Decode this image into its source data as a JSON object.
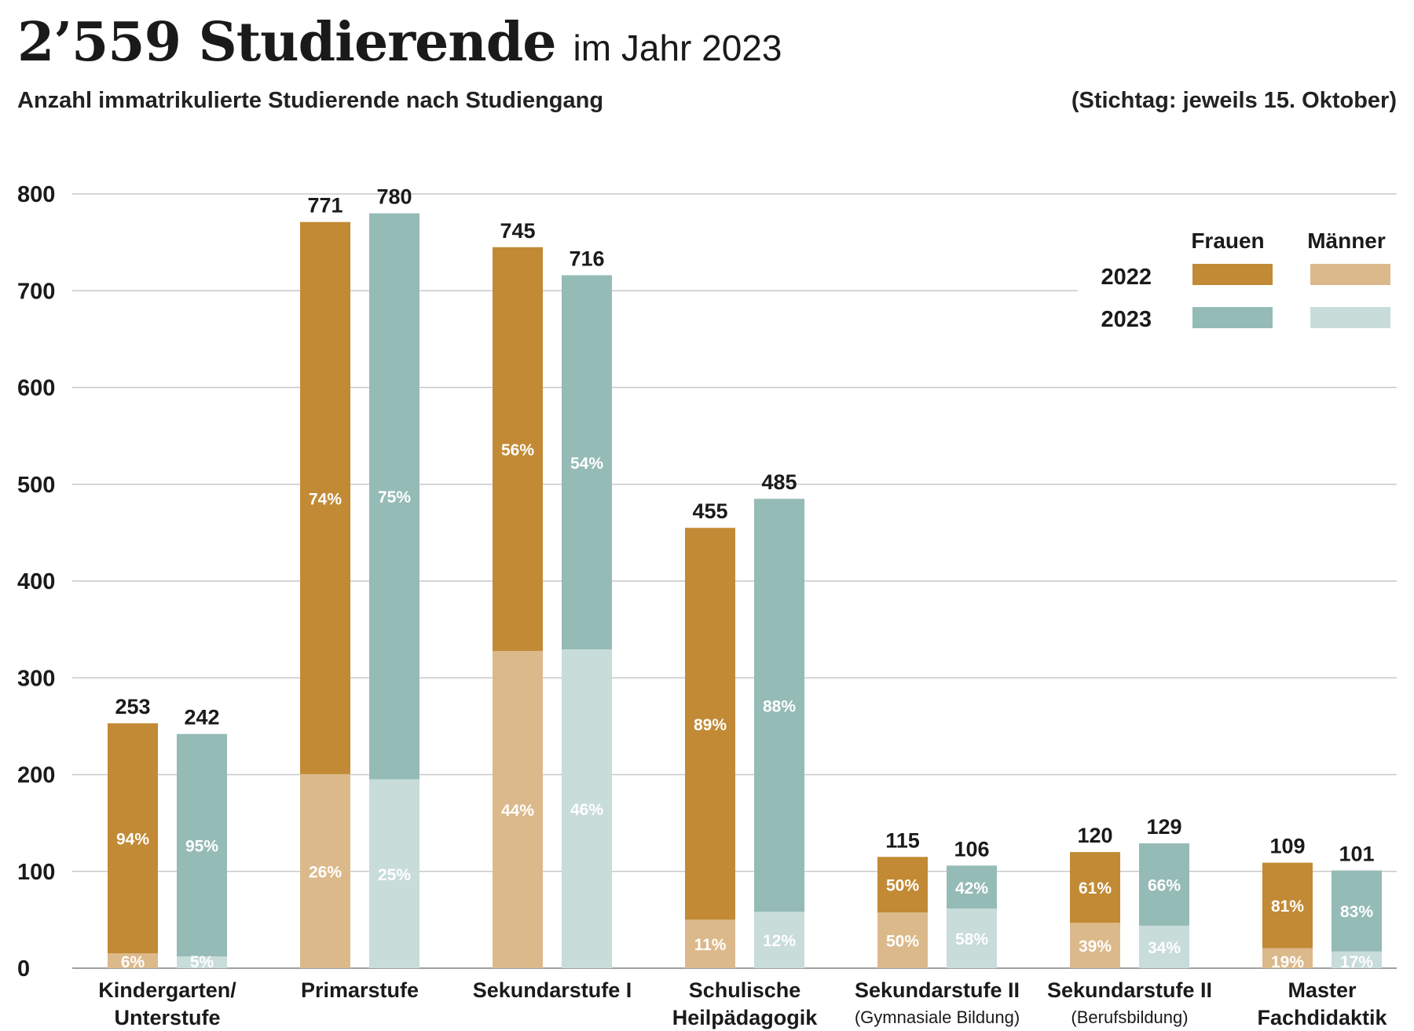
{
  "header": {
    "title_main": "2’559 Studierende",
    "title_sub": "im Jahr 2023",
    "subtitle": "Anzahl immatrikulierte Studierende nach Studiengang",
    "note": "(Stichtag: jeweils 15. Oktober)"
  },
  "legend": {
    "col_frauen": "Frauen",
    "col_maenner": "Männer",
    "row_2022": "2022",
    "row_2023": "2023"
  },
  "colors": {
    "2022_frauen": "#c28a35",
    "2022_maenner": "#dcb98b",
    "2023_frauen": "#95bbb6",
    "2023_maenner": "#c8dcd9",
    "grid": "#c8c8c8",
    "pct_2022_frauen": "#ffffff",
    "pct_other": "#ffffff"
  },
  "chart_data": {
    "type": "bar",
    "stacked": true,
    "ylim": [
      0,
      800
    ],
    "yticks": [
      "0",
      "100",
      "200",
      "300",
      "400",
      "500",
      "600",
      "700",
      "800"
    ],
    "ytick_values": [
      0,
      100,
      200,
      300,
      400,
      500,
      600,
      700,
      800
    ],
    "grid": true,
    "legend_position": "top-right",
    "categories": [
      {
        "label1": "Kindergarten/",
        "label2": "Unterstufe",
        "sub": ""
      },
      {
        "label1": "Primarstufe",
        "label2": "",
        "sub": ""
      },
      {
        "label1": "Sekundarstufe I",
        "label2": "",
        "sub": ""
      },
      {
        "label1": "Schulische",
        "label2": "Heilpädagogik",
        "sub": ""
      },
      {
        "label1": "Sekundarstufe II",
        "label2": "",
        "sub": "(Gymnasiale Bildung)"
      },
      {
        "label1": "Sekundarstufe II",
        "label2": "",
        "sub": "(Berufsbildung)"
      },
      {
        "label1": "Master",
        "label2": "Fachdidaktik",
        "sub": ""
      }
    ],
    "series": [
      {
        "name": "2022",
        "totals": [
          253,
          771,
          745,
          455,
          115,
          120,
          109
        ],
        "total_labels": [
          "253",
          "771",
          "745",
          "455",
          "115",
          "120",
          "109"
        ],
        "frauen_pct": [
          94,
          74,
          56,
          89,
          50,
          61,
          81
        ],
        "maenner_pct": [
          6,
          26,
          44,
          11,
          50,
          39,
          19
        ],
        "frauen_labels": [
          "94%",
          "74%",
          "56%",
          "89%",
          "50%",
          "61%",
          "81%"
        ],
        "maenner_labels": [
          "6%",
          "26%",
          "44%",
          "11%",
          "50%",
          "39%",
          "19%"
        ]
      },
      {
        "name": "2023",
        "totals": [
          242,
          780,
          716,
          485,
          106,
          129,
          101
        ],
        "total_labels": [
          "242",
          "780",
          "716",
          "485",
          "106",
          "129",
          "101"
        ],
        "frauen_pct": [
          95,
          75,
          54,
          88,
          42,
          66,
          83
        ],
        "maenner_pct": [
          5,
          25,
          46,
          12,
          58,
          34,
          17
        ],
        "frauen_labels": [
          "95%",
          "75%",
          "54%",
          "88%",
          "42%",
          "66%",
          "83%"
        ],
        "maenner_labels": [
          "5%",
          "25%",
          "46%",
          "12%",
          "58%",
          "34%",
          "17%"
        ]
      }
    ]
  }
}
